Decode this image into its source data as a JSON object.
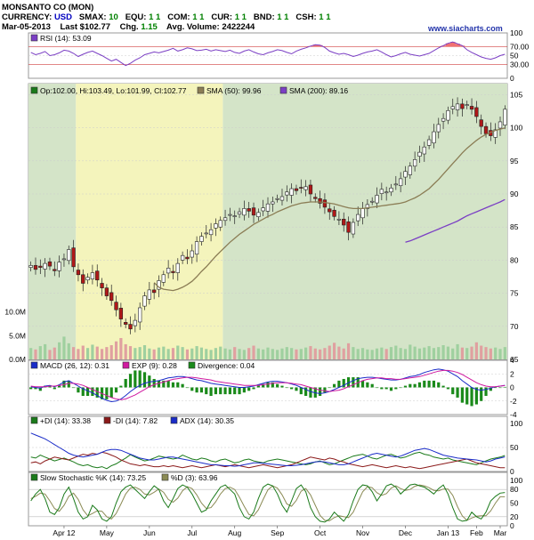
{
  "header": {
    "title": "MONSANTO CO (MON)",
    "currency_label": "CURRENCY:",
    "currency": "USD",
    "smax_label": "SMAX:",
    "smax": "10",
    "equ_label": "EQU:",
    "equ": "1 1",
    "com_label": "COM:",
    "com": "1 1",
    "cur_label": "CUR:",
    "cur": "1 1",
    "bnd_label": "BND:",
    "bnd": "1 1",
    "csh_label": "CSH:",
    "csh": "1 1",
    "date": "Mar-05-2013",
    "last_label": "Last",
    "last": "$102.77",
    "chg_label": "Chg.",
    "chg": "1.15",
    "avgvol_label": "Avg. Volume:",
    "avgvol": "2422244",
    "site": "www.siacharts.com"
  },
  "colors": {
    "up": "#1a7a1a",
    "down": "#b01818",
    "sma50": "#8b7d55",
    "sma200": "#7b3fc4",
    "rsi": "#7b3fc4",
    "macd": "#1a2cc8",
    "signal": "#d01aa0",
    "divergence": "#1a8a1a",
    "plus_di": "#1a7a1a",
    "minus_di": "#8b1a1a",
    "adx": "#1a2cc8",
    "stoch_k": "#1a7a1a",
    "stoch_d": "#8b8b55",
    "bg_green": "#d4e4c8",
    "bg_yellow": "#f4f4bc"
  },
  "chart_data": [
    {
      "type": "line",
      "panel": "RSI",
      "legend": "RSI (14): 53.09",
      "ylim": [
        0,
        100
      ],
      "y_ticks": [
        "100",
        "70.00",
        "50",
        "30.00",
        "0"
      ],
      "reference_lines": [
        70,
        30
      ],
      "values": [
        57,
        52,
        55,
        59,
        50,
        52,
        56,
        62,
        60,
        55,
        48,
        53,
        57,
        60,
        55,
        50,
        44,
        38,
        42,
        35,
        28,
        33,
        40,
        45,
        52,
        55,
        58,
        56,
        59,
        62,
        66,
        60,
        63,
        67,
        65,
        61,
        62,
        64,
        60,
        63,
        61,
        59,
        62,
        57,
        55,
        60,
        63,
        58,
        54,
        52,
        56,
        59,
        63,
        61,
        57,
        54,
        60,
        64,
        67,
        71,
        74,
        73,
        68,
        60,
        56,
        53,
        55,
        52,
        48,
        51,
        55,
        58,
        60,
        63,
        58,
        52,
        47,
        50,
        54,
        57,
        53,
        51,
        49,
        52,
        55,
        61,
        67,
        72,
        77,
        80,
        76,
        72,
        63,
        57,
        52,
        47,
        44,
        42,
        45,
        50,
        53
      ]
    },
    {
      "type": "candlestick",
      "panel": "Price",
      "legend": [
        "Op:102.00, Hi:103.49, Lo:101.99, Cl:102.77",
        "SMA (50): 99.96",
        "SMA (200): 89.16"
      ],
      "x_labels": [
        "Apr 12",
        "May",
        "Jun",
        "Jul",
        "Aug",
        "Sep",
        "Oct",
        "Nov",
        "Dec",
        "Jan 13",
        "Feb",
        "Mar"
      ],
      "y_ticks": [
        "105",
        "100",
        "95",
        "90",
        "85",
        "80",
        "75",
        "70",
        "65"
      ],
      "ylim": [
        65,
        106
      ],
      "close": [
        79.2,
        78.6,
        78.9,
        79.5,
        79.1,
        78.4,
        79.7,
        80.2,
        81.6,
        79.0,
        77.8,
        76.5,
        77.4,
        78.1,
        77.0,
        75.8,
        74.6,
        73.9,
        72.5,
        71.1,
        70.3,
        69.6,
        70.9,
        72.8,
        74.6,
        75.5,
        75.1,
        76.9,
        77.8,
        78.8,
        78.1,
        79.5,
        80.7,
        80.2,
        81.4,
        82.8,
        83.6,
        84.1,
        84.6,
        85.5,
        86.0,
        86.4,
        86.9,
        86.7,
        87.3,
        87.8,
        87.4,
        86.8,
        87.2,
        87.9,
        88.5,
        88.8,
        89.3,
        89.6,
        90.3,
        90.8,
        90.5,
        90.9,
        91.1,
        90.0,
        89.3,
        88.6,
        88.0,
        87.3,
        86.6,
        86.2,
        85.3,
        84.2,
        85.7,
        86.9,
        87.8,
        88.4,
        88.9,
        89.8,
        90.7,
        90.3,
        90.9,
        91.5,
        92.3,
        93.4,
        94.2,
        95.2,
        96.3,
        97.1,
        98.2,
        99.4,
        100.5,
        101.4,
        102.6,
        103.2,
        103.6,
        102.9,
        103.5,
        102.8,
        101.7,
        100.2,
        99.1,
        98.8,
        99.7,
        100.9,
        102.8
      ],
      "sma50": [
        null,
        null,
        null,
        null,
        null,
        null,
        null,
        null,
        null,
        null,
        null,
        null,
        null,
        null,
        null,
        null,
        null,
        null,
        null,
        null,
        null,
        null,
        null,
        null,
        null,
        null,
        76.6,
        75.9,
        75.6,
        75.5,
        75.4,
        75.6,
        75.9,
        76.3,
        76.8,
        77.5,
        78.3,
        79.0,
        79.8,
        80.6,
        81.3,
        82.0,
        82.7,
        83.3,
        83.9,
        84.4,
        84.9,
        85.4,
        85.8,
        86.2,
        86.6,
        86.9,
        87.3,
        87.6,
        87.9,
        88.2,
        88.4,
        88.6,
        88.7,
        88.8,
        88.8,
        88.8,
        88.7,
        88.6,
        88.5,
        88.3,
        88.1,
        87.9,
        87.8,
        87.8,
        87.8,
        87.9,
        88.0,
        88.1,
        88.2,
        88.3,
        88.4,
        88.5,
        88.6,
        88.8,
        89.1,
        89.4,
        89.8,
        90.3,
        90.8,
        91.5,
        92.2,
        93.0,
        93.8,
        94.6,
        95.4,
        96.2,
        96.9,
        97.5,
        98.1,
        98.6,
        99.0,
        99.3,
        99.6,
        99.8,
        99.96
      ],
      "sma200": [
        null,
        null,
        null,
        null,
        null,
        null,
        null,
        null,
        null,
        null,
        null,
        null,
        null,
        null,
        null,
        null,
        null,
        null,
        null,
        null,
        null,
        null,
        null,
        null,
        null,
        null,
        null,
        null,
        null,
        null,
        null,
        null,
        null,
        null,
        null,
        null,
        null,
        null,
        null,
        null,
        null,
        null,
        null,
        null,
        null,
        null,
        null,
        null,
        null,
        null,
        null,
        null,
        null,
        null,
        null,
        null,
        null,
        null,
        null,
        null,
        null,
        null,
        null,
        null,
        null,
        null,
        null,
        null,
        null,
        null,
        null,
        null,
        null,
        null,
        null,
        null,
        null,
        null,
        null,
        82.7,
        82.9,
        83.2,
        83.5,
        83.8,
        84.1,
        84.4,
        84.7,
        85.0,
        85.3,
        85.6,
        85.9,
        86.3,
        86.7,
        87.0,
        87.3,
        87.6,
        87.9,
        88.2,
        88.5,
        88.8,
        89.16
      ],
      "background_regions": [
        {
          "from": 0,
          "to": 10,
          "fill": "green"
        },
        {
          "from": 10,
          "to": 41,
          "fill": "yellow"
        },
        {
          "from": 41,
          "to": 101,
          "fill": "green"
        }
      ]
    },
    {
      "type": "bar",
      "panel": "Volume",
      "y_ticks": [
        "10.0M",
        "5.0M",
        "0.0M"
      ],
      "ylim": [
        0,
        12
      ],
      "values": [
        2.4,
        2.1,
        2.8,
        3.2,
        2.0,
        2.5,
        3.6,
        4.8,
        3.4,
        2.6,
        2.2,
        2.9,
        2.4,
        3.1,
        2.7,
        2.2,
        2.6,
        3.0,
        3.8,
        4.5,
        3.2,
        2.8,
        2.4,
        2.6,
        3.0,
        2.3,
        2.1,
        2.5,
        2.7,
        2.2,
        2.4,
        2.9,
        2.6,
        2.1,
        2.3,
        2.8,
        2.5,
        2.2,
        2.0,
        2.4,
        2.7,
        2.3,
        2.1,
        2.6,
        2.2,
        2.0,
        2.4,
        2.9,
        2.3,
        2.1,
        2.5,
        2.2,
        2.0,
        2.3,
        2.6,
        2.4,
        2.1,
        2.2,
        2.5,
        2.8,
        2.3,
        2.1,
        2.4,
        2.9,
        3.5,
        2.7,
        2.3,
        3.4,
        2.6,
        2.2,
        2.4,
        2.1,
        2.0,
        2.3,
        2.5,
        2.2,
        2.6,
        2.9,
        2.4,
        2.2,
        3.1,
        2.7,
        2.3,
        2.5,
        2.8,
        2.4,
        2.6,
        3.0,
        2.7,
        2.3,
        3.2,
        2.5,
        2.4,
        2.7,
        3.6,
        2.9,
        2.6,
        2.3,
        2.5,
        2.2,
        2.6
      ]
    },
    {
      "type": "line",
      "panel": "MACD",
      "legend": [
        "MACD (26, 12): 0.31",
        "EXP (9): 0.28",
        "Divergence: 0.04"
      ],
      "y_ticks": [
        "4",
        "2",
        "0",
        "-2",
        "-4"
      ],
      "ylim": [
        -4,
        4
      ],
      "macd": [
        0.1,
        0.0,
        -0.1,
        0.2,
        0.3,
        0.1,
        0.4,
        0.8,
        1.0,
        0.6,
        0.2,
        -0.2,
        -0.5,
        -0.8,
        -1.2,
        -1.6,
        -1.9,
        -2.1,
        -2.0,
        -1.7,
        -1.2,
        -0.6,
        -0.1,
        0.3,
        0.6,
        0.8,
        0.9,
        1.0,
        1.2,
        1.4,
        1.5,
        1.6,
        1.6,
        1.5,
        1.3,
        1.1,
        1.0,
        0.8,
        0.6,
        0.5,
        0.4,
        0.3,
        0.2,
        0.1,
        0.0,
        0.0,
        0.1,
        0.2,
        0.4,
        0.6,
        0.8,
        0.9,
        0.9,
        0.8,
        0.7,
        0.5,
        0.3,
        0.0,
        -0.3,
        -0.6,
        -0.8,
        -0.9,
        -0.8,
        -0.6,
        -0.3,
        0.0,
        0.3,
        0.7,
        1.0,
        1.3,
        1.4,
        1.5,
        1.5,
        1.4,
        1.3,
        1.2,
        1.1,
        1.1,
        1.2,
        1.4,
        1.6,
        1.7,
        1.9,
        2.2,
        2.4,
        2.6,
        2.7,
        2.6,
        2.4,
        2.0,
        1.6,
        1.0,
        0.5,
        0.0,
        -0.3,
        -0.4,
        -0.3,
        -0.1,
        0.1,
        0.2,
        0.31
      ],
      "signal": [
        0.2,
        0.1,
        0.1,
        0.1,
        0.2,
        0.2,
        0.3,
        0.4,
        0.6,
        0.6,
        0.5,
        0.3,
        0.0,
        -0.3,
        -0.6,
        -0.9,
        -1.2,
        -1.5,
        -1.7,
        -1.8,
        -1.7,
        -1.4,
        -1.1,
        -0.7,
        -0.3,
        0.1,
        0.4,
        0.6,
        0.8,
        1.0,
        1.2,
        1.3,
        1.4,
        1.5,
        1.5,
        1.4,
        1.3,
        1.2,
        1.1,
        0.9,
        0.8,
        0.7,
        0.6,
        0.5,
        0.4,
        0.3,
        0.3,
        0.3,
        0.3,
        0.4,
        0.5,
        0.6,
        0.7,
        0.7,
        0.7,
        0.6,
        0.5,
        0.4,
        0.2,
        0.0,
        -0.2,
        -0.4,
        -0.5,
        -0.6,
        -0.5,
        -0.4,
        -0.2,
        0.1,
        0.4,
        0.7,
        1.0,
        1.2,
        1.3,
        1.4,
        1.4,
        1.3,
        1.3,
        1.2,
        1.2,
        1.3,
        1.4,
        1.5,
        1.6,
        1.8,
        2.0,
        2.2,
        2.4,
        2.5,
        2.5,
        2.4,
        2.2,
        1.9,
        1.5,
        1.1,
        0.7,
        0.4,
        0.2,
        0.1,
        0.1,
        0.2,
        0.28
      ]
    },
    {
      "type": "line",
      "panel": "DMI",
      "legend": [
        "+DI (14): 33.38",
        "-DI (14): 7.82",
        "ADX (14): 30.35"
      ],
      "y_ticks": [
        "100",
        "50",
        "0"
      ],
      "ylim": [
        0,
        100
      ],
      "plus_di": [
        30,
        28,
        34,
        30,
        26,
        22,
        25,
        28,
        24,
        20,
        15,
        12,
        14,
        10,
        8,
        10,
        6,
        12,
        16,
        22,
        28,
        35,
        30,
        26,
        22,
        24,
        28,
        32,
        30,
        28,
        26,
        28,
        34,
        30,
        26,
        24,
        28,
        26,
        22,
        20,
        24,
        26,
        22,
        18,
        20,
        24,
        26,
        22,
        20,
        18,
        22,
        24,
        26,
        24,
        22,
        20,
        18,
        16,
        14,
        16,
        20,
        22,
        18,
        14,
        16,
        20,
        24,
        28,
        32,
        34,
        36,
        32,
        28,
        26,
        30,
        34,
        36,
        32,
        28,
        30,
        34,
        38,
        40,
        36,
        34,
        30,
        28,
        26,
        28,
        24,
        22,
        20,
        18,
        16,
        14,
        18,
        22,
        26,
        28,
        30,
        33.38
      ],
      "minus_di": [
        18,
        20,
        16,
        22,
        26,
        30,
        28,
        26,
        24,
        28,
        32,
        36,
        34,
        38,
        36,
        40,
        38,
        34,
        30,
        24,
        20,
        16,
        14,
        12,
        14,
        12,
        10,
        10,
        12,
        10,
        12,
        10,
        8,
        10,
        12,
        10,
        8,
        10,
        12,
        14,
        12,
        10,
        12,
        14,
        12,
        10,
        8,
        10,
        12,
        14,
        12,
        10,
        8,
        10,
        12,
        14,
        18,
        22,
        26,
        30,
        28,
        26,
        24,
        28,
        26,
        22,
        20,
        16,
        14,
        12,
        10,
        12,
        14,
        12,
        10,
        8,
        10,
        12,
        10,
        8,
        10,
        8,
        6,
        8,
        10,
        12,
        14,
        16,
        18,
        20,
        22,
        24,
        26,
        22,
        18,
        16,
        14,
        12,
        10,
        8,
        7.82
      ],
      "adx": [
        80,
        76,
        72,
        68,
        62,
        56,
        50,
        44,
        38,
        34,
        32,
        30,
        32,
        34,
        36,
        40,
        44,
        46,
        46,
        44,
        40,
        36,
        32,
        28,
        26,
        24,
        24,
        26,
        28,
        30,
        30,
        28,
        26,
        24,
        22,
        20,
        18,
        16,
        14,
        14,
        13,
        12,
        12,
        11,
        12,
        14,
        16,
        18,
        18,
        17,
        16,
        15,
        14,
        13,
        12,
        12,
        13,
        14,
        16,
        18,
        20,
        21,
        20,
        18,
        16,
        14,
        14,
        16,
        20,
        24,
        28,
        32,
        36,
        38,
        36,
        34,
        32,
        30,
        32,
        36,
        40,
        44,
        46,
        48,
        46,
        42,
        38,
        34,
        32,
        30,
        28,
        27,
        26,
        25,
        24,
        22,
        20,
        22,
        26,
        28,
        30.35
      ]
    },
    {
      "type": "line",
      "panel": "Stochastic",
      "legend": [
        "Slow Stochastic %K (14): 73.25",
        "%D (3): 63.96"
      ],
      "y_ticks": [
        "100",
        "80",
        "50",
        "20",
        "0"
      ],
      "ylim": [
        0,
        100
      ],
      "k": [
        55,
        70,
        80,
        60,
        30,
        25,
        40,
        70,
        85,
        60,
        30,
        15,
        20,
        45,
        35,
        15,
        10,
        20,
        50,
        75,
        85,
        90,
        80,
        70,
        60,
        75,
        88,
        80,
        55,
        40,
        60,
        82,
        90,
        85,
        70,
        50,
        30,
        35,
        55,
        70,
        85,
        90,
        80,
        70,
        40,
        20,
        15,
        30,
        60,
        85,
        92,
        88,
        70,
        45,
        30,
        55,
        82,
        90,
        75,
        40,
        20,
        10,
        8,
        15,
        30,
        20,
        10,
        25,
        55,
        80,
        90,
        88,
        75,
        55,
        70,
        88,
        92,
        85,
        70,
        80,
        90,
        92,
        88,
        85,
        78,
        70,
        82,
        90,
        70,
        40,
        15,
        10,
        12,
        30,
        20,
        15,
        30,
        55,
        65,
        72,
        73.25
      ],
      "d": [
        60,
        65,
        72,
        70,
        55,
        38,
        32,
        45,
        65,
        72,
        58,
        35,
        22,
        27,
        33,
        32,
        20,
        15,
        27,
        48,
        70,
        83,
        85,
        80,
        70,
        68,
        74,
        81,
        74,
        58,
        52,
        61,
        77,
        86,
        82,
        68,
        50,
        38,
        40,
        53,
        70,
        82,
        85,
        80,
        63,
        43,
        25,
        22,
        35,
        58,
        79,
        88,
        83,
        68,
        48,
        43,
        56,
        76,
        82,
        68,
        45,
        23,
        12,
        11,
        18,
        22,
        20,
        18,
        30,
        53,
        75,
        86,
        84,
        73,
        67,
        71,
        83,
        88,
        82,
        78,
        80,
        87,
        90,
        88,
        84,
        78,
        77,
        81,
        81,
        67,
        42,
        22,
        12,
        17,
        21,
        22,
        22,
        33,
        50,
        64,
        63.96
      ]
    }
  ]
}
